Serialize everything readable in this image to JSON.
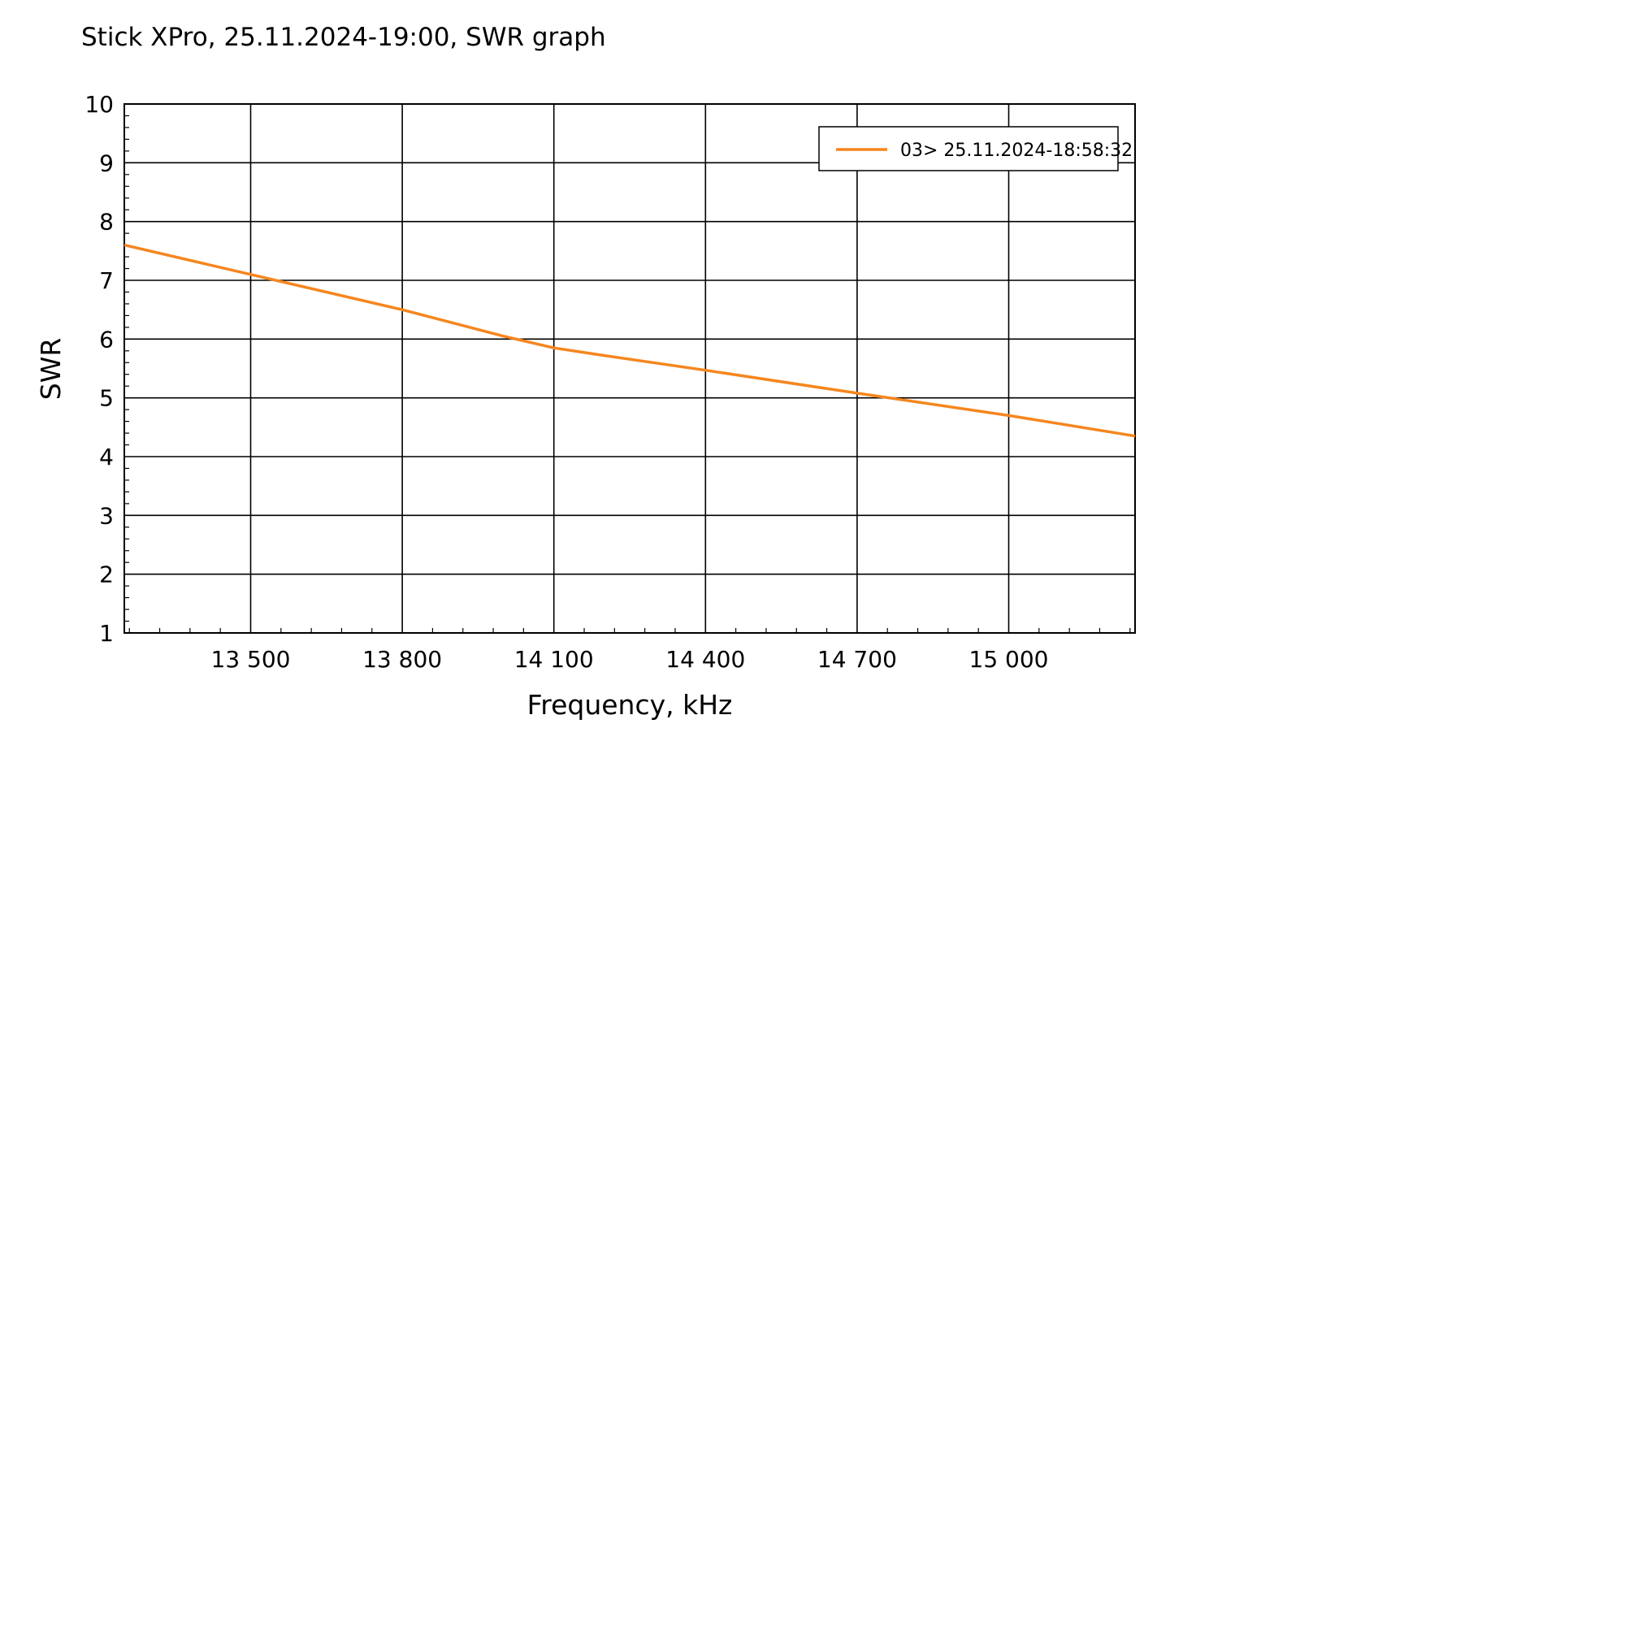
{
  "chart_data": {
    "type": "line",
    "title": "Stick XPro, 25.11.2024-19:00, SWR graph",
    "xlabel": "Frequency, kHz",
    "ylabel": "SWR",
    "xlim": [
      13250,
      15250
    ],
    "ylim": [
      1,
      10
    ],
    "x_ticks": [
      13500,
      13800,
      14100,
      14400,
      14700,
      15000
    ],
    "x_tick_labels": [
      "13 500",
      "13 800",
      "14 100",
      "14 400",
      "14 700",
      "15 000"
    ],
    "y_ticks": [
      1,
      2,
      3,
      4,
      5,
      6,
      7,
      8,
      9,
      10
    ],
    "y_tick_labels": [
      "1",
      "2",
      "3",
      "4",
      "5",
      "6",
      "7",
      "8",
      "9",
      "10"
    ],
    "grid": true,
    "legend_position": "top-right",
    "series": [
      {
        "name": "03> 25.11.2024-18:58:32",
        "color": "#f5861f",
        "x": [
          13250,
          13500,
          13800,
          14000,
          14100,
          14200,
          14400,
          14700,
          15000,
          15250
        ],
        "y": [
          7.6,
          7.1,
          6.5,
          6.05,
          5.85,
          5.72,
          5.47,
          5.08,
          4.7,
          4.35
        ]
      }
    ]
  }
}
